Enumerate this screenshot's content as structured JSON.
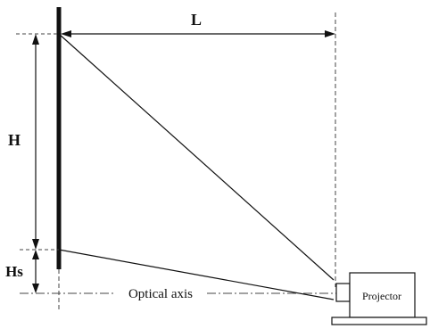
{
  "labels": {
    "L": "L",
    "H": "H",
    "Hs": "Hs",
    "optical_axis": "Optical axis",
    "projector": "Projector"
  },
  "colors": {
    "ink": "#111111",
    "dashed": "#444444",
    "background": "#ffffff"
  }
}
